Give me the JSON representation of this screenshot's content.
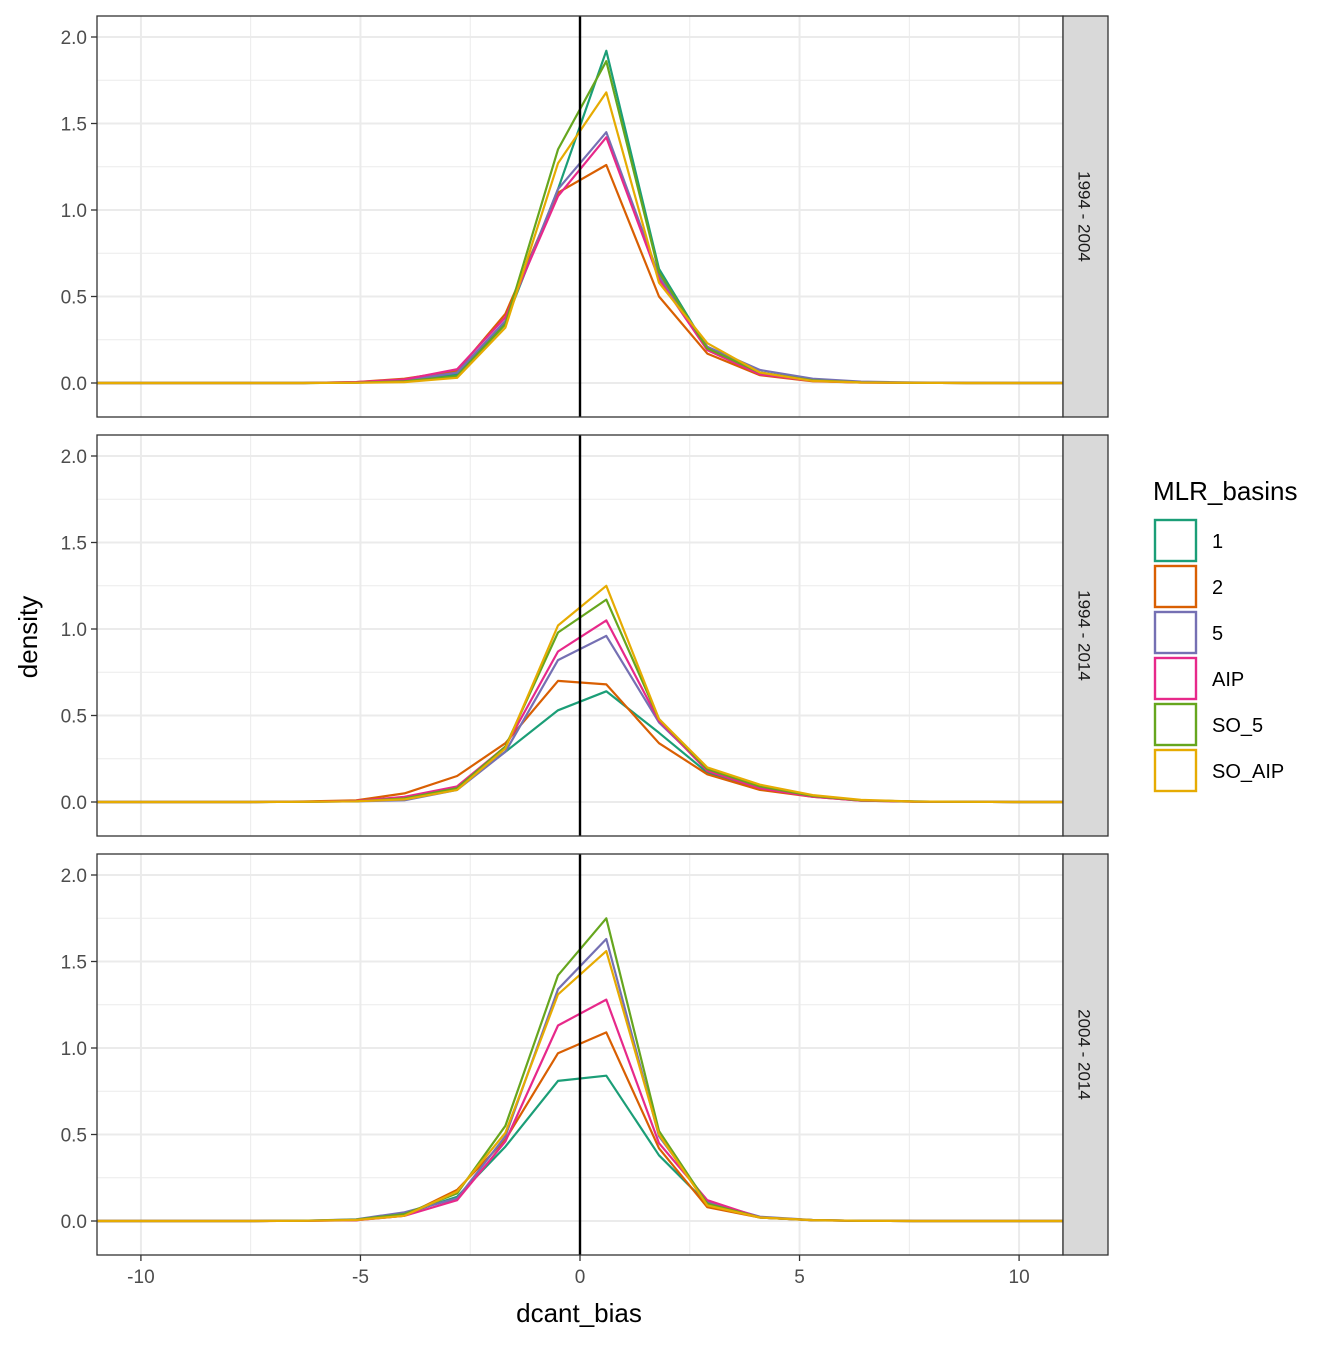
{
  "colors": {
    "1": "#1b9e77",
    "2": "#d95f02",
    "5": "#7570b3",
    "AIP": "#e7298a",
    "SO_5": "#66a61e",
    "SO_AIP": "#e6ab02",
    "grid": "#ebebeb",
    "strip": "#d9d9d9",
    "axis_text": "#4d4d4d"
  },
  "chart_data": {
    "type": "line",
    "xlabel": "dcant_bias",
    "ylabel": "density",
    "xlim": [
      -11,
      11
    ],
    "ylim": [
      0,
      2.0
    ],
    "x_ticks": [
      -10,
      -5,
      0,
      5,
      10
    ],
    "y_ticks": [
      0.0,
      0.5,
      1.0,
      1.5,
      2.0
    ],
    "vline_x": 0,
    "grid": true,
    "legend": {
      "title": "MLR_basins",
      "position": "right",
      "entries": [
        "1",
        "2",
        "5",
        "AIP",
        "SO_5",
        "SO_AIP"
      ]
    },
    "x": [
      -11,
      -9.9,
      -8.7,
      -7.5,
      -6.3,
      -5.1,
      -4.0,
      -2.8,
      -1.7,
      -0.5,
      0.6,
      1.8,
      2.9,
      4.1,
      5.3,
      6.4,
      7.6,
      8.8,
      9.9,
      11
    ],
    "facets": [
      {
        "label": "1994 - 2004",
        "series": [
          {
            "name": "1",
            "values": [
              0,
              0,
              0,
              0,
              0,
              0.002,
              0.01,
              0.05,
              0.35,
              1.12,
              1.92,
              0.66,
              0.2,
              0.06,
              0.015,
              0.004,
              0.001,
              0,
              0,
              0
            ]
          },
          {
            "name": "2",
            "values": [
              0,
              0,
              0,
              0,
              0,
              0.005,
              0.025,
              0.07,
              0.4,
              1.1,
              1.26,
              0.5,
              0.17,
              0.045,
              0.01,
              0.003,
              0.001,
              0,
              0,
              0
            ]
          },
          {
            "name": "5",
            "values": [
              0,
              0,
              0,
              0,
              0,
              0.003,
              0.015,
              0.06,
              0.36,
              1.12,
              1.45,
              0.62,
              0.21,
              0.075,
              0.025,
              0.008,
              0.003,
              0.001,
              0,
              0
            ]
          },
          {
            "name": "AIP",
            "values": [
              0,
              0,
              0,
              0,
              0,
              0.005,
              0.02,
              0.08,
              0.38,
              1.08,
              1.42,
              0.6,
              0.19,
              0.05,
              0.012,
              0.003,
              0.001,
              0,
              0,
              0
            ]
          },
          {
            "name": "SO_5",
            "values": [
              0,
              0,
              0,
              0,
              0,
              0.002,
              0.01,
              0.04,
              0.34,
              1.35,
              1.86,
              0.64,
              0.2,
              0.06,
              0.015,
              0.004,
              0.001,
              0,
              0,
              0
            ]
          },
          {
            "name": "SO_AIP",
            "values": [
              0,
              0,
              0,
              0,
              0,
              0.001,
              0.005,
              0.03,
              0.32,
              1.27,
              1.68,
              0.58,
              0.23,
              0.06,
              0.012,
              0.003,
              0.001,
              0,
              0,
              0
            ]
          }
        ]
      },
      {
        "label": "1994 - 2014",
        "series": [
          {
            "name": "1",
            "values": [
              0,
              0,
              0,
              0,
              0.002,
              0.005,
              0.02,
              0.08,
              0.29,
              0.53,
              0.64,
              0.4,
              0.17,
              0.08,
              0.035,
              0.01,
              0.003,
              0.001,
              0,
              0
            ]
          },
          {
            "name": "2",
            "values": [
              0,
              0,
              0,
              0,
              0.003,
              0.01,
              0.05,
              0.15,
              0.34,
              0.7,
              0.68,
              0.34,
              0.16,
              0.07,
              0.03,
              0.008,
              0.002,
              0.001,
              0,
              0
            ]
          },
          {
            "name": "5",
            "values": [
              0,
              0,
              0,
              0,
              0.001,
              0.004,
              0.01,
              0.07,
              0.29,
              0.82,
              0.96,
              0.46,
              0.19,
              0.09,
              0.035,
              0.01,
              0.003,
              0.001,
              0,
              0
            ]
          },
          {
            "name": "AIP",
            "values": [
              0,
              0,
              0,
              0,
              0.002,
              0.006,
              0.03,
              0.09,
              0.32,
              0.87,
              1.05,
              0.47,
              0.18,
              0.08,
              0.03,
              0.008,
              0.002,
              0.001,
              0,
              0
            ]
          },
          {
            "name": "SO_5",
            "values": [
              0,
              0,
              0,
              0,
              0.001,
              0.004,
              0.02,
              0.08,
              0.32,
              0.98,
              1.17,
              0.48,
              0.19,
              0.09,
              0.035,
              0.01,
              0.003,
              0.001,
              0,
              0
            ]
          },
          {
            "name": "SO_AIP",
            "values": [
              0,
              0,
              0,
              0,
              0.001,
              0.004,
              0.015,
              0.07,
              0.31,
              1.02,
              1.25,
              0.48,
              0.2,
              0.1,
              0.04,
              0.012,
              0.003,
              0.001,
              0,
              0
            ]
          }
        ]
      },
      {
        "label": "2004 - 2014",
        "series": [
          {
            "name": "1",
            "values": [
              0,
              0,
              0,
              0,
              0.002,
              0.006,
              0.04,
              0.14,
              0.43,
              0.81,
              0.84,
              0.38,
              0.1,
              0.02,
              0.005,
              0.001,
              0,
              0,
              0,
              0
            ]
          },
          {
            "name": "2",
            "values": [
              0,
              0,
              0,
              0,
              0.001,
              0.005,
              0.03,
              0.18,
              0.47,
              0.97,
              1.09,
              0.42,
              0.08,
              0.02,
              0.004,
              0.001,
              0,
              0,
              0,
              0
            ]
          },
          {
            "name": "5",
            "values": [
              0,
              0,
              0,
              0,
              0.002,
              0.01,
              0.05,
              0.13,
              0.49,
              1.34,
              1.63,
              0.49,
              0.11,
              0.025,
              0.006,
              0.001,
              0,
              0,
              0,
              0
            ]
          },
          {
            "name": "AIP",
            "values": [
              0,
              0,
              0,
              0,
              0.001,
              0.004,
              0.03,
              0.12,
              0.46,
              1.13,
              1.28,
              0.45,
              0.12,
              0.02,
              0.005,
              0.001,
              0,
              0,
              0,
              0
            ]
          },
          {
            "name": "SO_5",
            "values": [
              0,
              0,
              0,
              0,
              0.002,
              0.008,
              0.04,
              0.16,
              0.55,
              1.42,
              1.75,
              0.52,
              0.1,
              0.02,
              0.005,
              0.001,
              0,
              0,
              0,
              0
            ]
          },
          {
            "name": "SO_AIP",
            "values": [
              0,
              0,
              0,
              0,
              0.001,
              0.006,
              0.03,
              0.17,
              0.51,
              1.31,
              1.56,
              0.5,
              0.09,
              0.02,
              0.005,
              0.001,
              0,
              0,
              0,
              0
            ]
          }
        ]
      }
    ]
  }
}
